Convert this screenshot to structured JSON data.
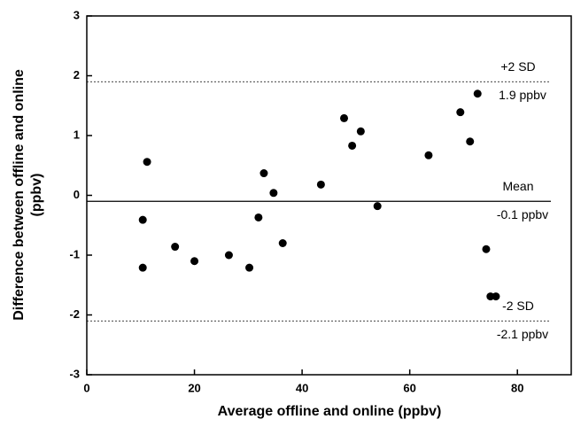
{
  "chart_data": {
    "type": "scatter",
    "xlabel": "Average offline and online (ppbv)",
    "ylabel": [
      "Difference between offline and online",
      "(ppbv)"
    ],
    "x": [
      10.4,
      10.4,
      11.2,
      16.4,
      20,
      26.4,
      30.2,
      31.9,
      32.9,
      34.7,
      36.4,
      43.5,
      47.8,
      49.3,
      50.9,
      54.0,
      63.5,
      69.4,
      71.2,
      72.6,
      74.2,
      75.0,
      76.0
    ],
    "values": [
      -0.41,
      -1.21,
      0.56,
      -0.86,
      -1.1,
      -1.0,
      -1.21,
      -0.37,
      0.37,
      0.04,
      -0.8,
      0.18,
      1.29,
      0.83,
      1.07,
      -0.18,
      0.67,
      1.39,
      0.9,
      1.7,
      -0.9,
      -1.69,
      -1.69
    ],
    "color": "#000000",
    "xlim": [
      0,
      90
    ],
    "xticks": [
      0,
      20,
      40,
      60,
      80
    ],
    "ylim": [
      -3,
      3
    ],
    "yticks": [
      -3,
      -2,
      -1,
      0,
      1,
      2,
      3
    ],
    "reference_lines": [
      {
        "label": "+2 SD",
        "value_label": "1.9 ppbv",
        "value": 1.9,
        "dashed": true
      },
      {
        "label": "Mean",
        "value_label": "-0.1 ppbv",
        "value": -0.1,
        "dashed": false
      },
      {
        "label": "-2 SD",
        "value_label": "-2.1 ppbv",
        "value": -2.1,
        "dashed": true
      }
    ]
  }
}
